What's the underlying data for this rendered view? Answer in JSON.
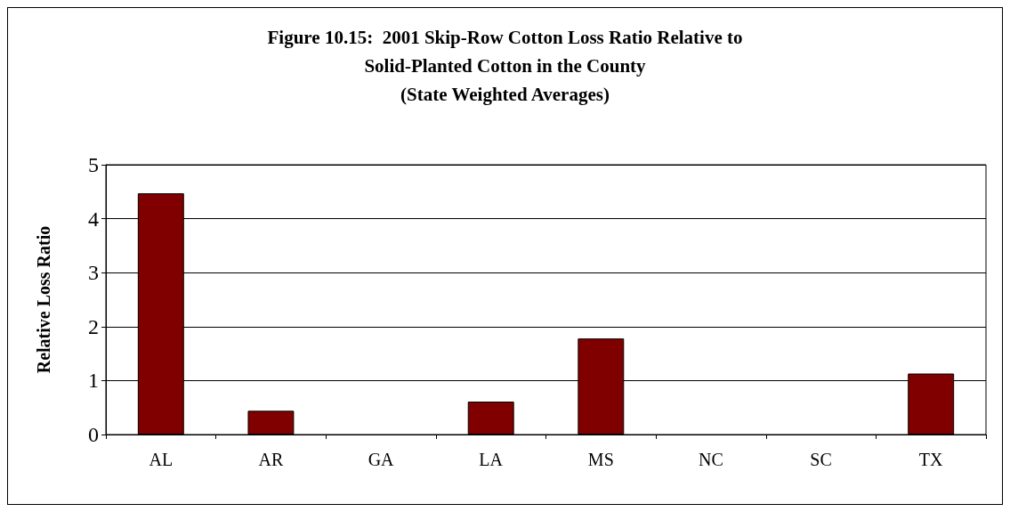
{
  "chart_data": {
    "type": "bar",
    "title": "Figure 10.15:  2001 Skip-Row Cotton Loss Ratio Relative to\nSolid-Planted Cotton in the County\n(State Weighted Averages)",
    "ylabel": "Relative Loss Ratio",
    "categories": [
      "AL",
      "AR",
      "GA",
      "LA",
      "MS",
      "NC",
      "SC",
      "TX"
    ],
    "values": [
      4.47,
      0.44,
      0,
      0.61,
      1.78,
      0,
      0,
      1.13
    ],
    "color": "#800000",
    "ylim": [
      0,
      5
    ],
    "yticks": [
      0,
      1,
      2,
      3,
      4,
      5
    ],
    "grid": "y"
  }
}
